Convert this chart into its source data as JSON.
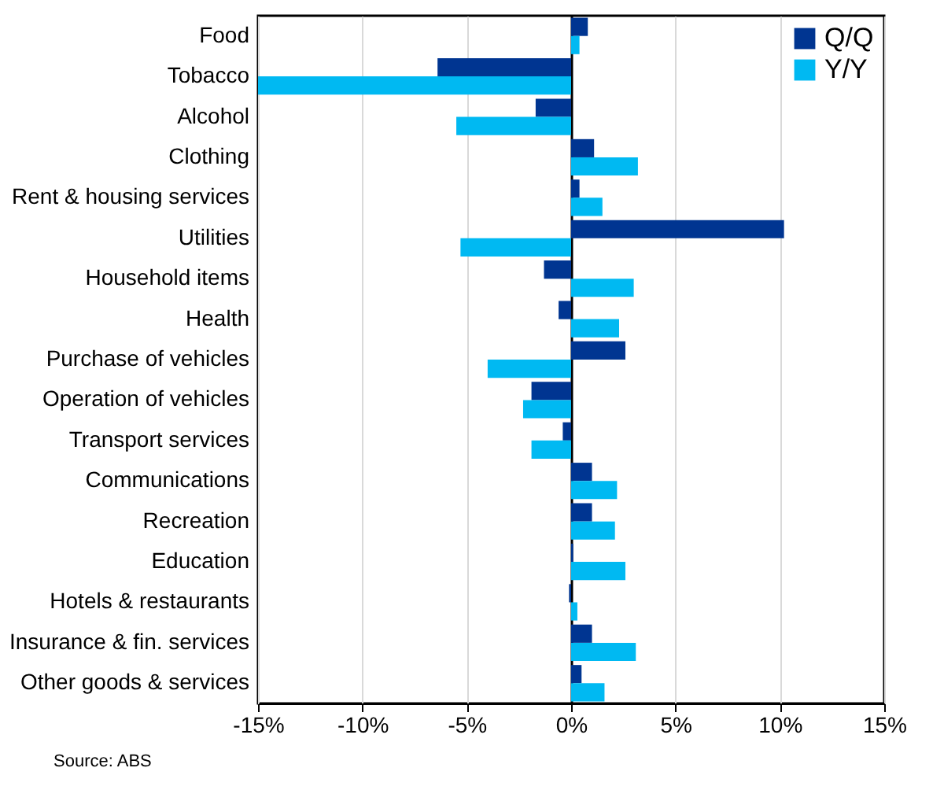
{
  "chart_data": {
    "type": "bar",
    "orientation": "horizontal",
    "categories": [
      "Food",
      "Tobacco",
      "Alcohol",
      "Clothing",
      "Rent & housing services",
      "Utilities",
      "Household items",
      "Health",
      "Purchase of vehicles",
      "Operation of vehicles",
      "Transport services",
      "Communications",
      "Recreation",
      "Education",
      "Hotels & restaurants",
      "Insurance & fin. services",
      "Other goods & services"
    ],
    "series": [
      {
        "name": "Q/Q",
        "color": "#003591",
        "values": [
          0.8,
          -6.4,
          -1.7,
          1.1,
          0.4,
          10.2,
          -1.3,
          -0.6,
          2.6,
          -1.9,
          -0.4,
          1.0,
          1.0,
          0.1,
          -0.1,
          1.0,
          0.5
        ]
      },
      {
        "name": "Y/Y",
        "color": "#00b9f2",
        "values": [
          0.4,
          -15.0,
          -5.5,
          3.2,
          1.5,
          -5.3,
          3.0,
          2.3,
          -4.0,
          -2.3,
          -1.9,
          2.2,
          2.1,
          2.6,
          0.3,
          3.1,
          1.6
        ]
      }
    ],
    "xlim": [
      -15,
      15
    ],
    "xticks": [
      {
        "value": -15,
        "label": "-15%"
      },
      {
        "value": -10,
        "label": "-10%"
      },
      {
        "value": -5,
        "label": "-5%"
      },
      {
        "value": 0,
        "label": "0%"
      },
      {
        "value": 5,
        "label": "5%"
      },
      {
        "value": 10,
        "label": "10%"
      },
      {
        "value": 15,
        "label": "15%"
      }
    ],
    "grid": "x",
    "legend": "top right",
    "annotations": [
      "Source: ABS"
    ]
  }
}
